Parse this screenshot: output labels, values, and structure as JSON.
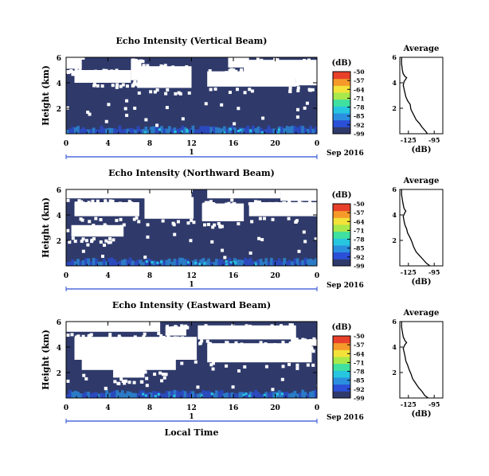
{
  "chart_data": [
    {
      "type": "heatmap",
      "title": "Echo Intensity (Vertical Beam)",
      "ylabel": "Height (km)",
      "x_ticks": [
        "0",
        "4",
        "8",
        "12",
        "16",
        "20",
        "0"
      ],
      "y_ticks": [
        "6",
        "4",
        "2"
      ],
      "xlim": [
        0,
        24
      ],
      "ylim": [
        0,
        6
      ],
      "date_marker": "1",
      "date_label": "Sep 2016",
      "colorbar": {
        "unit": "(dB)",
        "ticks": [
          "-50",
          "-57",
          "-64",
          "-71",
          "-78",
          "-85",
          "-92",
          "-99"
        ]
      },
      "profile": {
        "title": "Average",
        "xlabel": "(dB)",
        "x_ticks": [
          "-125",
          "-95"
        ],
        "y_ticks": [
          "6",
          "4",
          "2"
        ],
        "xlim": [
          -135,
          -85
        ],
        "points": [
          [
            -103,
            0.0
          ],
          [
            -105,
            0.2
          ],
          [
            -109,
            0.5
          ],
          [
            -112,
            0.8
          ],
          [
            -116,
            1.1
          ],
          [
            -119,
            1.5
          ],
          [
            -122,
            1.9
          ],
          [
            -123,
            2.3
          ],
          [
            -126,
            2.6
          ],
          [
            -128,
            2.9
          ],
          [
            -129,
            3.2
          ],
          [
            -130,
            3.5
          ],
          [
            -131,
            3.8
          ],
          [
            -130,
            4.1
          ],
          [
            -128,
            4.3
          ],
          [
            -127,
            4.4
          ],
          [
            -129,
            4.5
          ],
          [
            -131,
            4.7
          ],
          [
            -132,
            5.0
          ],
          [
            -133,
            5.5
          ],
          [
            -133,
            6.0
          ]
        ]
      }
    },
    {
      "type": "heatmap",
      "title": "Echo Intensity (Northward Beam)",
      "ylabel": "Height (km)",
      "x_ticks": [
        "0",
        "4",
        "8",
        "12",
        "16",
        "20",
        "0"
      ],
      "y_ticks": [
        "6",
        "4",
        "2"
      ],
      "xlim": [
        0,
        24
      ],
      "ylim": [
        0,
        6
      ],
      "date_marker": "1",
      "date_label": "Sep 2016",
      "colorbar": {
        "unit": "(dB)",
        "ticks": [
          "-50",
          "-57",
          "-64",
          "-71",
          "-78",
          "-85",
          "-92",
          "-99"
        ]
      },
      "profile": {
        "title": "Average",
        "xlabel": "(dB)",
        "x_ticks": [
          "-125",
          "-95"
        ],
        "y_ticks": [
          "6",
          "4",
          "2"
        ],
        "xlim": [
          -135,
          -85
        ],
        "points": [
          [
            -100,
            0.0
          ],
          [
            -104,
            0.2
          ],
          [
            -108,
            0.5
          ],
          [
            -112,
            0.8
          ],
          [
            -116,
            1.1
          ],
          [
            -119,
            1.5
          ],
          [
            -121,
            1.9
          ],
          [
            -123,
            2.2
          ],
          [
            -126,
            2.6
          ],
          [
            -127,
            2.9
          ],
          [
            -129,
            3.2
          ],
          [
            -130,
            3.5
          ],
          [
            -131,
            3.9
          ],
          [
            -129,
            4.2
          ],
          [
            -128,
            4.3
          ],
          [
            -130,
            4.5
          ],
          [
            -131,
            4.8
          ],
          [
            -132,
            5.2
          ],
          [
            -133,
            5.6
          ],
          [
            -133,
            6.0
          ]
        ]
      }
    },
    {
      "type": "heatmap",
      "title": "Echo Intensity (Eastward Beam)",
      "ylabel": "Height (km)",
      "xlabel": "Local Time",
      "x_ticks": [
        "0",
        "4",
        "8",
        "12",
        "16",
        "20",
        "0"
      ],
      "y_ticks": [
        "6",
        "4",
        "2"
      ],
      "xlim": [
        0,
        24
      ],
      "ylim": [
        0,
        6
      ],
      "date_marker": "1",
      "date_label": "Sep 2016",
      "colorbar": {
        "unit": "(dB)",
        "ticks": [
          "-50",
          "-57",
          "-64",
          "-71",
          "-78",
          "-85",
          "-92",
          "-99"
        ]
      },
      "profile": {
        "title": "Average",
        "xlabel": "(dB)",
        "x_ticks": [
          "-125",
          "-95"
        ],
        "y_ticks": [
          "6",
          "4",
          "2"
        ],
        "xlim": [
          -135,
          -85
        ],
        "points": [
          [
            -102,
            0.0
          ],
          [
            -106,
            0.2
          ],
          [
            -109,
            0.5
          ],
          [
            -113,
            0.8
          ],
          [
            -116,
            1.1
          ],
          [
            -120,
            1.5
          ],
          [
            -122,
            1.9
          ],
          [
            -124,
            2.2
          ],
          [
            -126,
            2.6
          ],
          [
            -128,
            2.9
          ],
          [
            -129,
            3.3
          ],
          [
            -130,
            3.6
          ],
          [
            -131,
            3.9
          ],
          [
            -129,
            4.2
          ],
          [
            -127,
            4.35
          ],
          [
            -129,
            4.5
          ],
          [
            -131,
            4.8
          ],
          [
            -132,
            5.2
          ],
          [
            -133,
            5.6
          ],
          [
            -133,
            6.0
          ]
        ]
      }
    }
  ],
  "colors": {
    "background_echo": "#2f3a6b",
    "no_data": "#ffffff",
    "colormap": [
      "#2f3a6b",
      "#2b4fd6",
      "#2b8fe0",
      "#27c6e0",
      "#3fe0a0",
      "#a8e84a",
      "#f2e23a",
      "#f59a2a",
      "#e8402a"
    ]
  }
}
